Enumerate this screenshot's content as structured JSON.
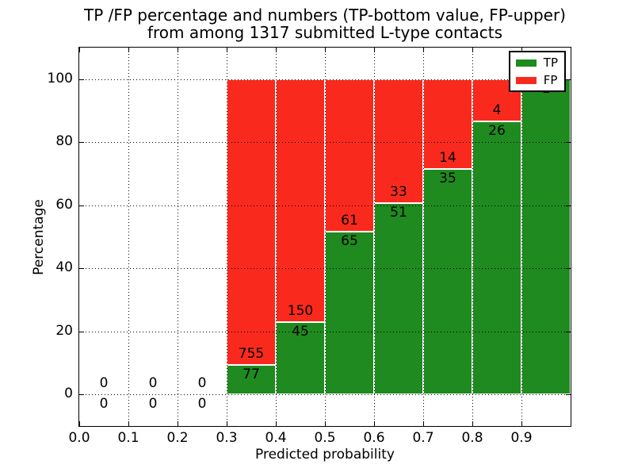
{
  "figure": {
    "title_line1": "TP /FP percentage and numbers (TP-bottom value, FP-upper)",
    "title_line2": "from among 1317 submitted L-type contacts"
  },
  "axes": {
    "xlabel": "Predicted probability",
    "ylabel": "Percentage",
    "x_tick_labels": [
      "0.0",
      "0.1",
      "0.2",
      "0.3",
      "0.4",
      "0.5",
      "0.6",
      "0.7",
      "0.8",
      "0.9"
    ],
    "y_tick_labels": [
      "0",
      "20",
      "40",
      "60",
      "80",
      "100"
    ]
  },
  "chart_data": {
    "type": "bar",
    "stacked": true,
    "normalized": "each bin scaled to 100%, TP bottom / FP top",
    "title": "TP /FP percentage and numbers (TP-bottom value, FP-upper) from among 1317 submitted L-type contacts",
    "xlabel": "Predicted probability",
    "ylabel": "Percentage",
    "xlim": [
      0.0,
      1.0
    ],
    "ylim": [
      -10,
      110
    ],
    "x_ticks": [
      0.0,
      0.1,
      0.2,
      0.3,
      0.4,
      0.5,
      0.6,
      0.7,
      0.8,
      0.9
    ],
    "y_ticks": [
      0,
      20,
      40,
      60,
      80,
      100
    ],
    "grid": "dotted",
    "legend_position": "upper right",
    "total_contacts": 1317,
    "series": [
      {
        "name": "TP",
        "color": "#1f8a1f"
      },
      {
        "name": "FP",
        "color": "#f92a1d"
      }
    ],
    "bins": [
      {
        "x0": 0.0,
        "x1": 0.1,
        "tp": 0,
        "fp": 0
      },
      {
        "x0": 0.1,
        "x1": 0.2,
        "tp": 0,
        "fp": 0
      },
      {
        "x0": 0.2,
        "x1": 0.3,
        "tp": 0,
        "fp": 0
      },
      {
        "x0": 0.3,
        "x1": 0.4,
        "tp": 77,
        "fp": 755
      },
      {
        "x0": 0.4,
        "x1": 0.5,
        "tp": 45,
        "fp": 150
      },
      {
        "x0": 0.5,
        "x1": 0.6,
        "tp": 65,
        "fp": 61
      },
      {
        "x0": 0.6,
        "x1": 0.7,
        "tp": 51,
        "fp": 33
      },
      {
        "x0": 0.7,
        "x1": 0.8,
        "tp": 35,
        "fp": 14
      },
      {
        "x0": 0.8,
        "x1": 0.9,
        "tp": 26,
        "fp": 4
      },
      {
        "x0": 0.9,
        "x1": 1.0,
        "tp": 1,
        "fp": 0
      }
    ]
  }
}
